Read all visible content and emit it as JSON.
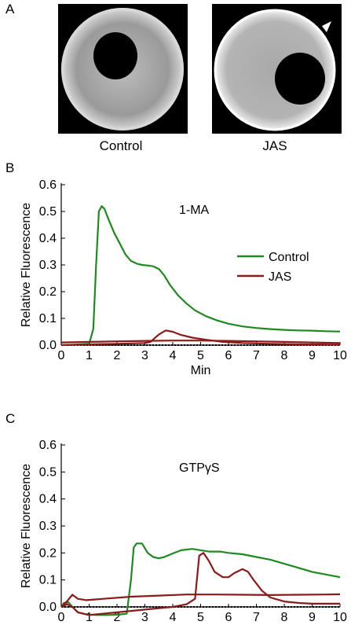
{
  "panels": {
    "a": {
      "letter": "A",
      "images": [
        {
          "caption": "Control",
          "description": "egg-fluorescence-control"
        },
        {
          "caption": "JAS",
          "description": "egg-fluorescence-jas",
          "has_arrowhead": true
        }
      ]
    },
    "b": {
      "letter": "B"
    },
    "c": {
      "letter": "C"
    }
  },
  "chart_data": [
    {
      "type": "line",
      "panel": "B",
      "annotation": "1-MA",
      "xlabel": "Min",
      "ylabel": "Relative Fluorescence",
      "xlim": [
        0,
        10
      ],
      "ylim": [
        0,
        0.6
      ],
      "xticks": [
        "0",
        "1",
        "2",
        "3",
        "4",
        "5",
        "6",
        "7",
        "8",
        "9",
        "10"
      ],
      "yticks": [
        "0.0",
        "0.1",
        "0.2",
        "0.3",
        "0.4",
        "0.5",
        "0.6"
      ],
      "legend": {
        "placement": "right-middle"
      },
      "series": [
        {
          "name": "Control",
          "color": "#1f8a1f",
          "x": [
            0,
            0.5,
            1.0,
            1.15,
            1.25,
            1.35,
            1.45,
            1.55,
            1.7,
            1.9,
            2.1,
            2.3,
            2.5,
            2.7,
            2.9,
            3.1,
            3.3,
            3.5,
            3.7,
            3.9,
            4.2,
            4.5,
            4.8,
            5.2,
            5.6,
            6.0,
            6.5,
            7.0,
            7.5,
            8.0,
            8.5,
            9.0,
            9.5,
            10
          ],
          "y": [
            0.0,
            0.002,
            0.005,
            0.06,
            0.3,
            0.5,
            0.52,
            0.51,
            0.47,
            0.42,
            0.38,
            0.34,
            0.315,
            0.305,
            0.3,
            0.298,
            0.295,
            0.285,
            0.26,
            0.225,
            0.185,
            0.155,
            0.13,
            0.108,
            0.092,
            0.08,
            0.07,
            0.064,
            0.06,
            0.057,
            0.055,
            0.054,
            0.052,
            0.051
          ]
        },
        {
          "name": "JAS",
          "color": "#8b1a1a",
          "x": [
            0,
            1.0,
            2.0,
            3.0,
            3.2,
            3.5,
            3.75,
            4.0,
            4.3,
            4.7,
            5.2,
            5.8,
            6.5,
            7.5,
            8.5,
            10
          ],
          "y": [
            0.0,
            0.003,
            0.005,
            0.008,
            0.012,
            0.04,
            0.055,
            0.05,
            0.038,
            0.028,
            0.02,
            0.012,
            0.008,
            0.005,
            0.003,
            0.002
          ]
        },
        {
          "name": "JAS",
          "color": "#8b1a1a",
          "x": [
            0,
            1.0,
            2.0,
            3.0,
            4.0,
            5.0,
            6.0,
            7.0,
            8.0,
            9.0,
            10
          ],
          "y": [
            0.01,
            0.012,
            0.014,
            0.016,
            0.017,
            0.017,
            0.016,
            0.014,
            0.012,
            0.01,
            0.008
          ]
        }
      ]
    },
    {
      "type": "line",
      "panel": "C",
      "annotation": "GTPγS",
      "xlabel": "Min",
      "ylabel": "Relative Fluorescence",
      "xlim": [
        0,
        10
      ],
      "ylim": [
        0,
        0.6
      ],
      "xticks": [
        "0",
        "1",
        "2",
        "3",
        "4",
        "5",
        "6",
        "7",
        "8",
        "9",
        "10"
      ],
      "yticks": [
        "0.0",
        "0.1",
        "0.2",
        "0.3",
        "0.4",
        "0.5",
        "0.6"
      ],
      "series": [
        {
          "name": "Control",
          "color": "#1f8a1f",
          "x": [
            0,
            0.1,
            0.25,
            0.4,
            0.6,
            0.9,
            1.3,
            1.7,
            2.1,
            2.35,
            2.5,
            2.6,
            2.7,
            2.9,
            3.1,
            3.3,
            3.5,
            3.7,
            4.0,
            4.3,
            4.7,
            5.0,
            5.3,
            5.7,
            6.0,
            6.5,
            7.0,
            7.5,
            8.0,
            8.5,
            9.0,
            9.5,
            10
          ],
          "y": [
            0.0,
            0.015,
            0.018,
            0.0,
            -0.02,
            -0.028,
            -0.03,
            -0.03,
            -0.028,
            -0.025,
            0.1,
            0.22,
            0.235,
            0.235,
            0.2,
            0.185,
            0.18,
            0.185,
            0.198,
            0.21,
            0.215,
            0.21,
            0.205,
            0.205,
            0.2,
            0.195,
            0.185,
            0.175,
            0.16,
            0.145,
            0.13,
            0.12,
            0.11
          ]
        },
        {
          "name": "JAS",
          "color": "#8b1a1a",
          "x": [
            0,
            0.2,
            0.4,
            0.6,
            1.0,
            1.5,
            2.0,
            2.5,
            3.0,
            3.5,
            4.0,
            4.5,
            4.8,
            4.95,
            5.1,
            5.3,
            5.5,
            5.8,
            6.0,
            6.2,
            6.5,
            6.7,
            6.9,
            7.2,
            7.5,
            8.0,
            8.5,
            9.0,
            9.5,
            10
          ],
          "y": [
            0.0,
            0.01,
            0.0,
            -0.02,
            -0.03,
            -0.025,
            -0.02,
            -0.015,
            -0.01,
            -0.005,
            0.0,
            0.01,
            0.03,
            0.19,
            0.2,
            0.17,
            0.13,
            0.11,
            0.11,
            0.125,
            0.14,
            0.13,
            0.1,
            0.06,
            0.035,
            0.02,
            0.015,
            0.012,
            0.012,
            0.012
          ]
        },
        {
          "name": "JAS",
          "color": "#8b1a1a",
          "x": [
            0,
            0.2,
            0.4,
            0.6,
            0.9,
            1.5,
            2.5,
            3.5,
            4.5,
            5.5,
            6.5,
            7.5,
            8.5,
            9.5,
            10
          ],
          "y": [
            0.0,
            0.02,
            0.045,
            0.03,
            0.025,
            0.03,
            0.038,
            0.042,
            0.046,
            0.046,
            0.045,
            0.044,
            0.045,
            0.046,
            0.047
          ]
        }
      ]
    }
  ]
}
